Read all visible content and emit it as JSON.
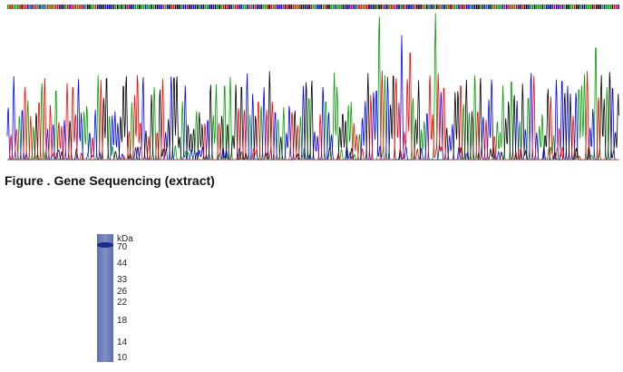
{
  "figure_caption": "Figure . Gene Sequencing (extract)",
  "gel": {
    "unit": "kDa",
    "markers": [
      70,
      44,
      33,
      26,
      22,
      18,
      14,
      10
    ]
  }
}
